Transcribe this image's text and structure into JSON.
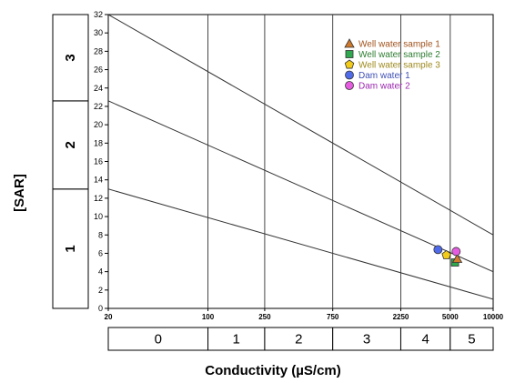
{
  "chart_data": {
    "type": "scatter",
    "ylabel": "[SAR]",
    "xlabel": "Conductivity (µS/cm)",
    "x_scale": "log",
    "xlim": [
      20,
      10000
    ],
    "ylim": [
      0,
      32
    ],
    "y_ticks": [
      0,
      2,
      4,
      6,
      8,
      10,
      12,
      14,
      16,
      18,
      20,
      22,
      24,
      26,
      28,
      30,
      32
    ],
    "x_ticks": [
      {
        "value": 20,
        "label": "20"
      },
      {
        "value": 100,
        "label": "100"
      },
      {
        "value": 250,
        "label": "250"
      },
      {
        "value": 750,
        "label": "750"
      },
      {
        "value": 2250,
        "label": "2250"
      },
      {
        "value": 5000,
        "label": "5000"
      },
      {
        "value": 10000,
        "label": "10000"
      }
    ],
    "x_gridlines": [
      100,
      250,
      750,
      2250,
      5000
    ],
    "boundary_lines": [
      {
        "x": [
          20,
          10000
        ],
        "y": [
          32,
          8
        ]
      },
      {
        "x": [
          20,
          10000
        ],
        "y": [
          22.6,
          4
        ]
      },
      {
        "x": [
          20,
          10000
        ],
        "y": [
          13,
          1
        ]
      }
    ],
    "sar_classes": [
      {
        "label": "1",
        "range": [
          0,
          13
        ]
      },
      {
        "label": "2",
        "range": [
          13,
          22.6
        ]
      },
      {
        "label": "3",
        "range": [
          22.6,
          32
        ]
      }
    ],
    "conductivity_classes": [
      {
        "label": "0",
        "range": [
          20,
          100
        ]
      },
      {
        "label": "1",
        "range": [
          100,
          250
        ]
      },
      {
        "label": "2",
        "range": [
          250,
          750
        ]
      },
      {
        "label": "3",
        "range": [
          750,
          2250
        ]
      },
      {
        "label": "4",
        "range": [
          2250,
          5000
        ]
      },
      {
        "label": "5",
        "range": [
          5000,
          10000
        ]
      }
    ],
    "series": [
      {
        "name": "Well water sample 1",
        "marker": "triangle",
        "color": "#d07a2c",
        "x": 5600,
        "y": 5.4
      },
      {
        "name": "Well water sample 2",
        "marker": "square",
        "color": "#2fa84f",
        "x": 5400,
        "y": 5.0
      },
      {
        "name": "Well water sample 3",
        "marker": "pentagon",
        "color": "#f2cc19",
        "x": 4700,
        "y": 5.8
      },
      {
        "name": "Dam water 1",
        "marker": "circle",
        "color": "#4f6bea",
        "x": 4100,
        "y": 6.4
      },
      {
        "name": "Dam water 2",
        "marker": "circle",
        "color": "#e55ce0",
        "x": 5500,
        "y": 6.2
      }
    ],
    "legend_position": "top-right",
    "legend_text_colors": [
      "#a0521c",
      "#2e7d32",
      "#9e8a1e",
      "#3f51b5",
      "#9c27b0"
    ]
  }
}
